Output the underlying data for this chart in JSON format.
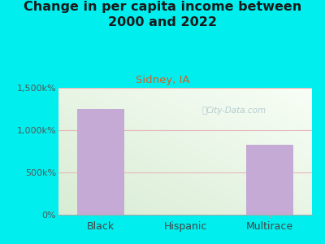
{
  "title": "Change in per capita income between\n2000 and 2022",
  "subtitle": "Sidney, IA",
  "categories": [
    "Black",
    "Hispanic",
    "Multirace"
  ],
  "values": [
    1250,
    0,
    825
  ],
  "bar_color": "#c4aad4",
  "background_color": "#00eeee",
  "plot_bg_gradient_top_left": "#d8ecd4",
  "plot_bg_gradient_bottom_right": "#f8fef6",
  "title_color": "#1a1a1a",
  "subtitle_color": "#d4602a",
  "tick_color": "#555555",
  "xtick_color": "#444444",
  "ylim": [
    0,
    1500
  ],
  "yticks": [
    0,
    500,
    1000,
    1500
  ],
  "ytick_labels": [
    "0%",
    "500k%",
    "1,000k%",
    "1,500k%"
  ],
  "grid_line_color": "#e8b8b8",
  "watermark": "City-Data.com",
  "watermark_color": "#a8c4cc",
  "title_fontsize": 11.5,
  "subtitle_fontsize": 9.5
}
